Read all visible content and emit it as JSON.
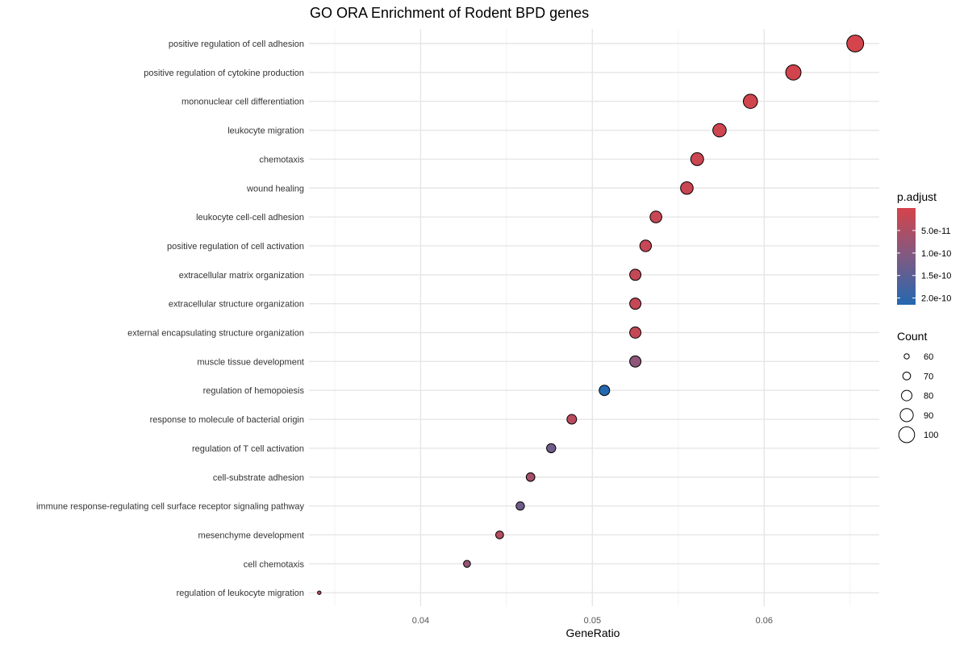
{
  "chart_data": {
    "type": "scatter",
    "title": "GO ORA Enrichment of Rodent BPD genes",
    "xlabel": "GeneRatio",
    "ylabel": "",
    "xlim": [
      0.0335,
      0.0667
    ],
    "x_ticks": [
      0.04,
      0.05,
      0.06
    ],
    "x_tick_labels": [
      "0.04",
      "0.05",
      "0.06"
    ],
    "grid": true,
    "legend_position": "right",
    "points": [
      {
        "term": "positive regulation of cell adhesion",
        "gene_ratio": 0.0653,
        "count": 104,
        "p_adjust": 4e-12
      },
      {
        "term": "positive regulation of cytokine production",
        "gene_ratio": 0.0617,
        "count": 98,
        "p_adjust": 6e-12
      },
      {
        "term": "mononuclear cell differentiation",
        "gene_ratio": 0.0592,
        "count": 94,
        "p_adjust": 8e-12
      },
      {
        "term": "leukocyte migration",
        "gene_ratio": 0.0574,
        "count": 91,
        "p_adjust": 1.1e-11
      },
      {
        "term": "chemotaxis",
        "gene_ratio": 0.0561,
        "count": 89,
        "p_adjust": 1.4e-11
      },
      {
        "term": "wound healing",
        "gene_ratio": 0.0555,
        "count": 88,
        "p_adjust": 1.6e-11
      },
      {
        "term": "leukocyte cell-cell adhesion",
        "gene_ratio": 0.0537,
        "count": 85,
        "p_adjust": 1.8e-11
      },
      {
        "term": "positive regulation of cell activation",
        "gene_ratio": 0.0531,
        "count": 84,
        "p_adjust": 2e-11
      },
      {
        "term": "extracellular matrix organization",
        "gene_ratio": 0.0525,
        "count": 83,
        "p_adjust": 2.2e-11
      },
      {
        "term": "extracellular structure organization",
        "gene_ratio": 0.0525,
        "count": 83,
        "p_adjust": 2.2e-11
      },
      {
        "term": "external encapsulating structure organization",
        "gene_ratio": 0.0525,
        "count": 83,
        "p_adjust": 2.2e-11
      },
      {
        "term": "muscle tissue development",
        "gene_ratio": 0.0525,
        "count": 83,
        "p_adjust": 9e-11
      },
      {
        "term": "regulation of hemopoiesis",
        "gene_ratio": 0.0507,
        "count": 80,
        "p_adjust": 2.2e-10
      },
      {
        "term": "response to molecule of bacterial origin",
        "gene_ratio": 0.0488,
        "count": 77,
        "p_adjust": 3.5e-11
      },
      {
        "term": "regulation of T cell activation",
        "gene_ratio": 0.0476,
        "count": 75,
        "p_adjust": 1.25e-10
      },
      {
        "term": "cell-substrate adhesion",
        "gene_ratio": 0.0464,
        "count": 73,
        "p_adjust": 6e-11
      },
      {
        "term": "immune response-regulating cell surface receptor signaling pathway",
        "gene_ratio": 0.0458,
        "count": 72,
        "p_adjust": 1.25e-10
      },
      {
        "term": "mesenchyme development",
        "gene_ratio": 0.0446,
        "count": 70,
        "p_adjust": 4e-11
      },
      {
        "term": "cell chemotaxis",
        "gene_ratio": 0.0427,
        "count": 67,
        "p_adjust": 8e-11
      },
      {
        "term": "regulation of leukocyte migration",
        "gene_ratio": 0.0341,
        "count": 54,
        "p_adjust": 3e-11
      }
    ],
    "color_legend": {
      "title": "p.adjust",
      "range": [
        0,
        2.15e-10
      ],
      "low_color": "#d6434a",
      "mid_color": "#7f5a83",
      "high_color": "#2468b0",
      "ticks": [
        5e-11,
        1e-10,
        1.5e-10,
        2e-10
      ],
      "tick_labels": [
        "5.0e-11",
        "1.0e-10",
        "1.5e-10",
        "2.0e-10"
      ]
    },
    "size_legend": {
      "title": "Count",
      "values": [
        60,
        70,
        80,
        90,
        100
      ],
      "labels": [
        "60",
        "70",
        "80",
        "90",
        "100"
      ]
    }
  }
}
